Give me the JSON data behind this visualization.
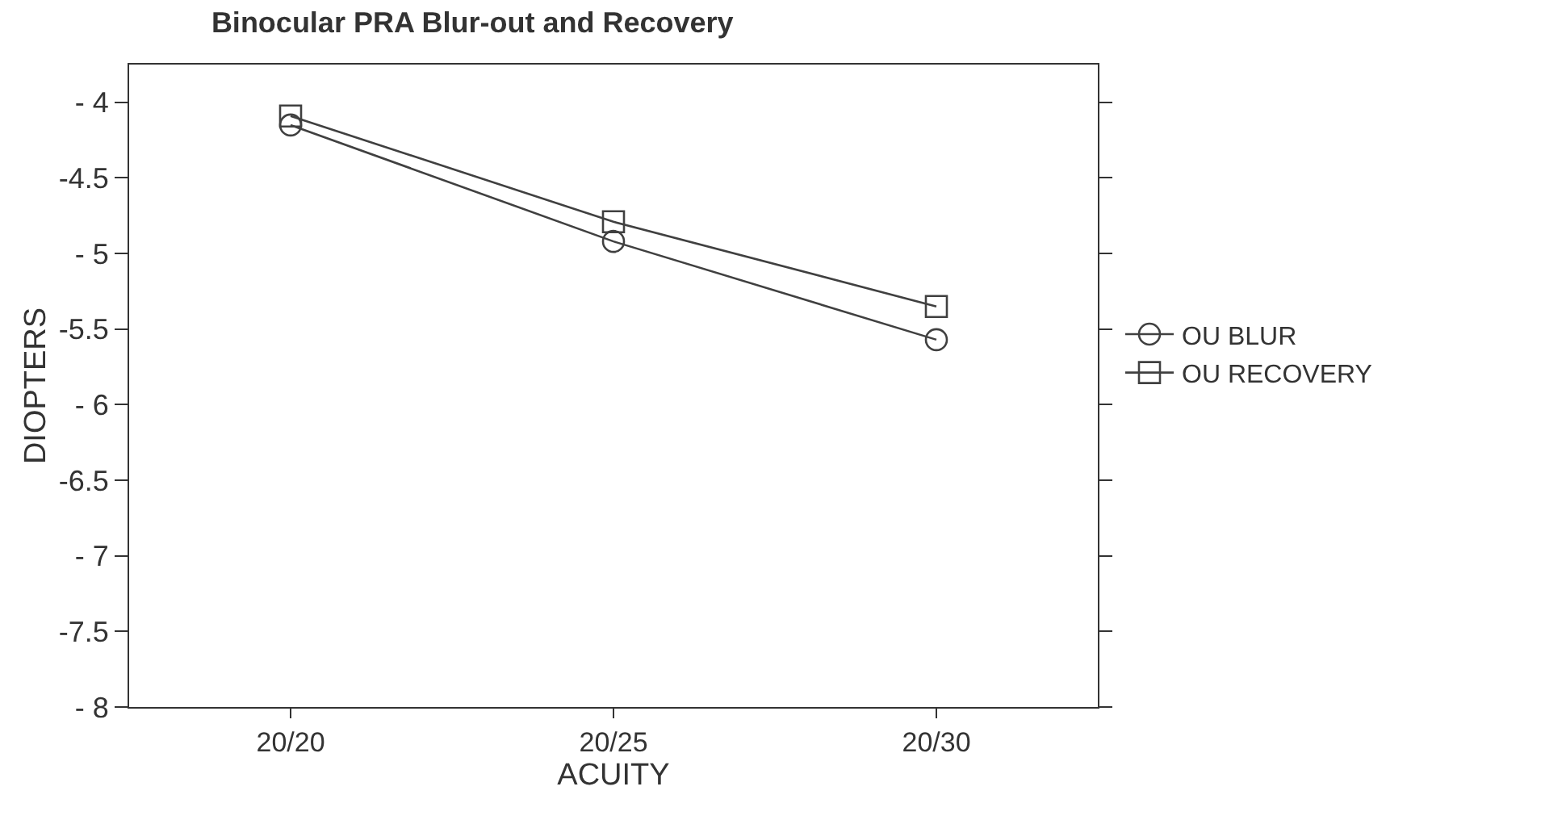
{
  "chart_data": {
    "type": "line",
    "title": "Binocular PRA Blur-out and Recovery",
    "xlabel": "ACUITY",
    "ylabel": "DIOPTERS",
    "categories": [
      "20/20",
      "20/25",
      "20/30"
    ],
    "series": [
      {
        "name": "OU BLUR",
        "color": "#404040",
        "marker": "circle",
        "values": [
          -4.15,
          -4.92,
          -5.57
        ]
      },
      {
        "name": "OU RECOVERY",
        "color": "#404040",
        "marker": "square",
        "values": [
          -4.09,
          -4.79,
          -5.35
        ]
      }
    ],
    "ylim": [
      -8,
      -3.75
    ],
    "yticks": [
      {
        "value": -4,
        "label": "- 4"
      },
      {
        "value": -4.5,
        "label": "-4.5"
      },
      {
        "value": -5,
        "label": "- 5"
      },
      {
        "value": -5.5,
        "label": "-5.5"
      },
      {
        "value": -6,
        "label": "- 6"
      },
      {
        "value": -6.5,
        "label": "-6.5"
      },
      {
        "value": -7,
        "label": "- 7"
      },
      {
        "value": -7.5,
        "label": "-7.5"
      },
      {
        "value": -8,
        "label": "- 8"
      }
    ],
    "legend": "right",
    "line_style": "solid"
  }
}
